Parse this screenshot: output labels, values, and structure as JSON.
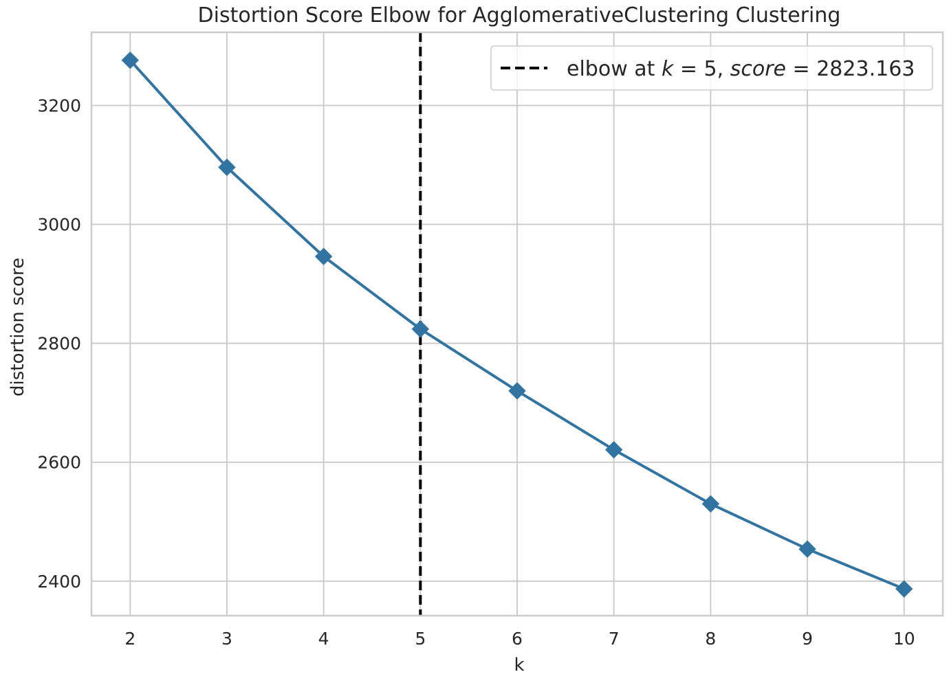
{
  "chart_data": {
    "type": "line",
    "title": "Distortion Score Elbow for AgglomerativeClustering Clustering",
    "xlabel": "k",
    "ylabel": "distortion score",
    "x": [
      2,
      3,
      4,
      5,
      6,
      7,
      8,
      9,
      10
    ],
    "series": [
      {
        "values": [
          3276,
          3096,
          2946,
          2824,
          2720,
          2621,
          2530,
          2454,
          2387
        ],
        "color": "#3274a1",
        "marker": "diamond"
      }
    ],
    "x_ticks": [
      "2",
      "3",
      "4",
      "5",
      "6",
      "7",
      "8",
      "9",
      "10"
    ],
    "y_ticks": [
      "2400",
      "2600",
      "2800",
      "3000",
      "3200"
    ],
    "y_tick_values": [
      2400,
      2600,
      2800,
      3000,
      3200
    ],
    "xlim": [
      1.6,
      10.4
    ],
    "ylim": [
      2342,
      3323
    ],
    "grid": true,
    "elbow": {
      "k": 5,
      "score": 2823.163,
      "color": "#000000",
      "legend_prefix": "elbow at ",
      "legend_k_symbol": "k",
      "legend_equals": " = ",
      "legend_k_value": "5",
      "legend_separator": ", ",
      "legend_score_symbol": "score",
      "legend_score_value": "2823.163"
    },
    "legend_position": "top-right"
  }
}
